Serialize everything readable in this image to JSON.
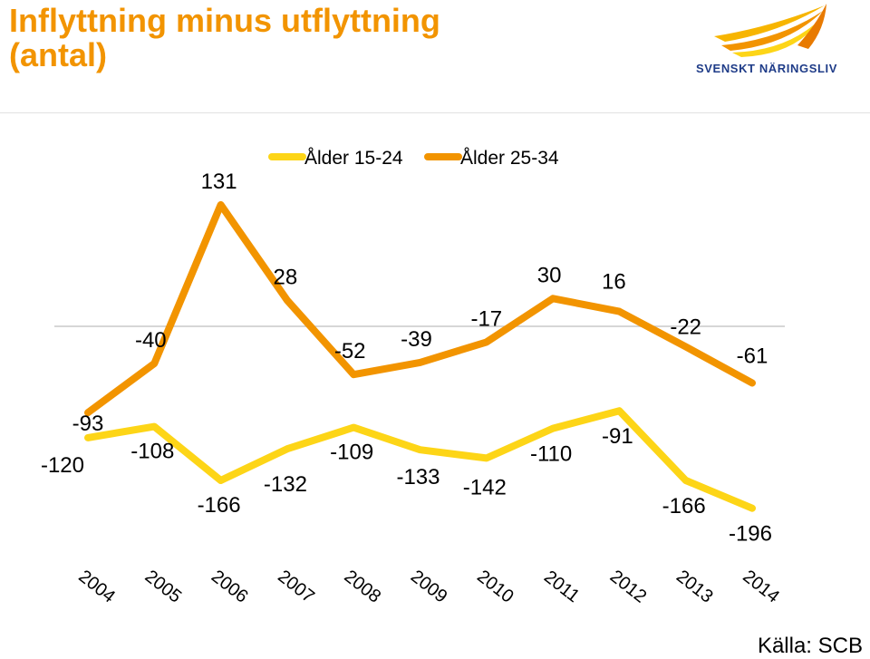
{
  "header": {
    "title_line1": "Inflyttning minus utflyttning",
    "title_line2": "(antal)",
    "logo_text": "SVENSKT NÄRINGSLIV"
  },
  "source": "Källa: SCB",
  "colors": {
    "title": "#f29400",
    "series_15_24": "#fdd517",
    "series_25_34": "#f29400",
    "zero_line": "#c8c8c8"
  },
  "chart_data": {
    "type": "line",
    "title": "Inflyttning minus utflyttning (antal)",
    "x": [
      "2004",
      "2005",
      "2006",
      "2007",
      "2008",
      "2009",
      "2010",
      "2011",
      "2012",
      "2013",
      "2014"
    ],
    "series": [
      {
        "name": "Ålder 15-24",
        "color": "#fdd517",
        "values": [
          -120,
          -108,
          -166,
          -132,
          -109,
          -133,
          -142,
          -110,
          -91,
          -166,
          -196
        ]
      },
      {
        "name": "Ålder 25-34",
        "color": "#f29400",
        "values": [
          -93,
          -40,
          131,
          28,
          -52,
          -39,
          -17,
          30,
          16,
          -22,
          -61
        ]
      }
    ],
    "legend": "top-center",
    "data_labels": true,
    "zero_line": true,
    "grid": false
  }
}
